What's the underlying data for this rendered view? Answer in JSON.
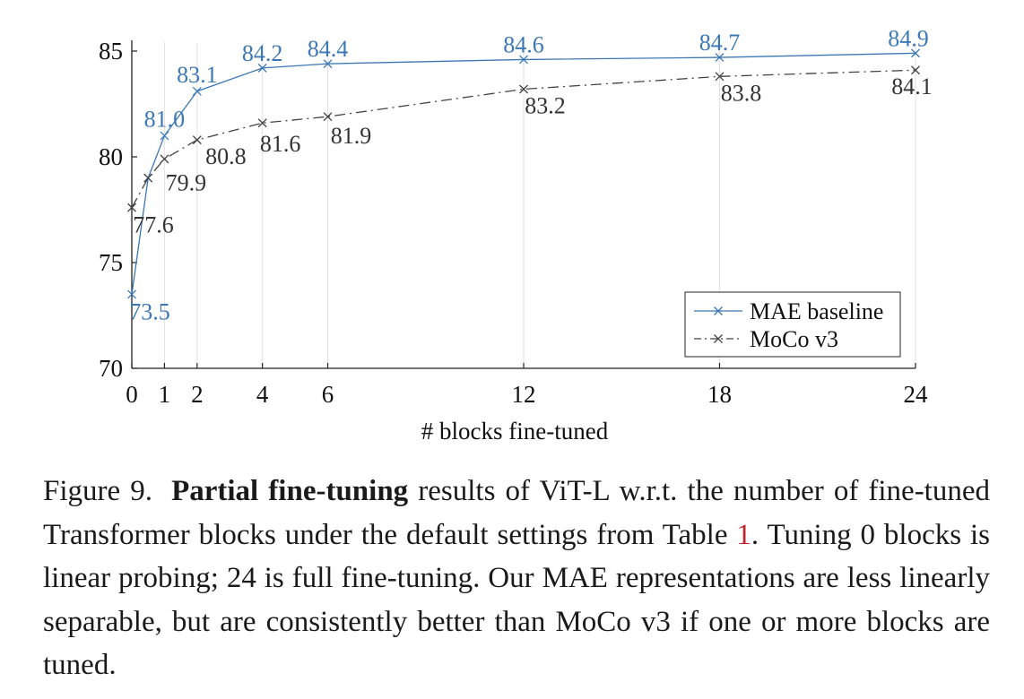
{
  "chart_data": {
    "type": "line",
    "x": [
      0,
      1,
      2,
      4,
      6,
      12,
      18,
      24
    ],
    "series": [
      {
        "name": "MAE baseline",
        "color": "#3c78b5",
        "linestyle": "solid",
        "marker": "x",
        "values": [
          73.5,
          79.0,
          81.0,
          83.1,
          84.2,
          84.4,
          84.6,
          84.7,
          84.9
        ],
        "x": [
          0,
          0.5,
          1,
          2,
          4,
          6,
          12,
          18,
          24
        ],
        "labels": [
          {
            "x": 0,
            "y": 73.5,
            "text": "73.5"
          },
          {
            "x": 1,
            "y": 81.0,
            "text": "81.0"
          },
          {
            "x": 2,
            "y": 83.1,
            "text": "83.1"
          },
          {
            "x": 4,
            "y": 84.2,
            "text": "84.2"
          },
          {
            "x": 6,
            "y": 84.4,
            "text": "84.4"
          },
          {
            "x": 12,
            "y": 84.6,
            "text": "84.6"
          },
          {
            "x": 18,
            "y": 84.7,
            "text": "84.7"
          },
          {
            "x": 24,
            "y": 84.9,
            "text": "84.9"
          }
        ]
      },
      {
        "name": "MoCo v3",
        "color": "#444444",
        "linestyle": "dashdot",
        "marker": "x",
        "values": [
          77.6,
          79.0,
          79.9,
          80.8,
          81.6,
          81.9,
          83.2,
          83.8,
          84.1
        ],
        "x": [
          0,
          0.5,
          1,
          2,
          4,
          6,
          12,
          18,
          24
        ],
        "labels": [
          {
            "x": 0,
            "y": 77.6,
            "text": "77.6"
          },
          {
            "x": 1,
            "y": 79.9,
            "text": "79.9"
          },
          {
            "x": 2,
            "y": 80.8,
            "text": "80.8"
          },
          {
            "x": 4,
            "y": 81.6,
            "text": "81.6"
          },
          {
            "x": 6,
            "y": 81.9,
            "text": "81.9"
          },
          {
            "x": 12,
            "y": 83.2,
            "text": "83.2"
          },
          {
            "x": 18,
            "y": 83.8,
            "text": "83.8"
          },
          {
            "x": 24,
            "y": 84.1,
            "text": "84.1"
          }
        ]
      }
    ],
    "xlabel": "# blocks fine-tuned",
    "ylabel": "",
    "xlim": [
      0,
      24
    ],
    "ylim": [
      70,
      85
    ],
    "xticks": [
      0,
      1,
      2,
      4,
      6,
      12,
      18,
      24
    ],
    "yticks": [
      70,
      75,
      80,
      85
    ],
    "grid": "vertical",
    "legend": "bottom-right"
  },
  "caption": {
    "label": "Figure 9.",
    "bold": "Partial fine-tuning",
    "text1": "results of ViT-L w.r.t. the number of fine-tuned Transformer blocks under the default settings from Table",
    "ref": "1",
    "text2": ". Tuning 0 blocks is linear probing; 24 is full fine-tuning. Our MAE representations are less linearly separable, but are consistently better than MoCo v3 if one or more blocks are tuned."
  }
}
